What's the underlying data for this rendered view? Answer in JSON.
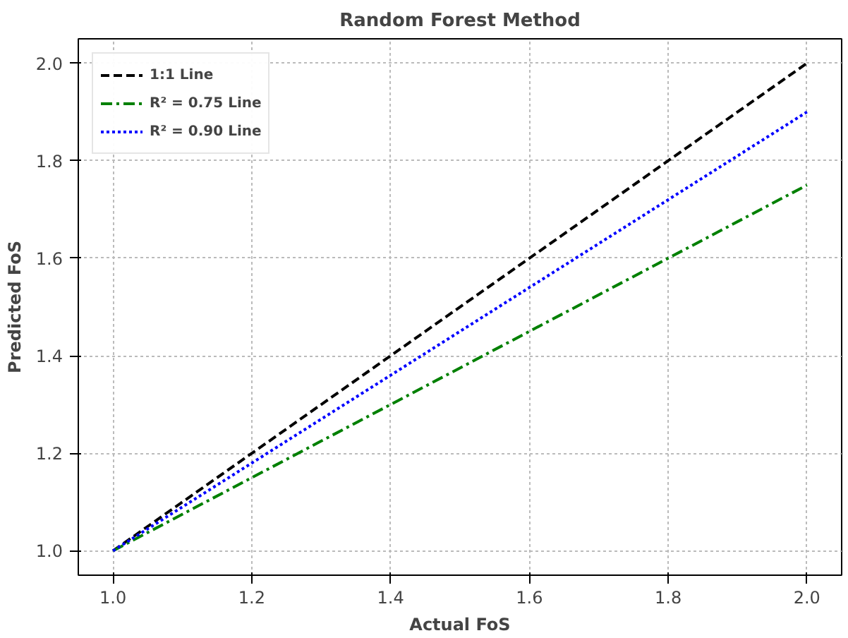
{
  "chart_data": {
    "type": "line",
    "title": "Random Forest Method",
    "xlabel": "Actual FoS",
    "ylabel": "Predicted FoS",
    "x": [
      1.0,
      2.0
    ],
    "series": [
      {
        "name": "1:1 Line",
        "color": "#000000",
        "values": [
          1.0,
          2.0
        ],
        "line_style": "dashed"
      },
      {
        "name": "R² = 0.75 Line",
        "color": "#008000",
        "values": [
          1.0,
          1.75
        ],
        "line_style": "dashdot"
      },
      {
        "name": "R² = 0.90 Line",
        "color": "#0000ff",
        "values": [
          1.0,
          1.9
        ],
        "line_style": "dotted"
      }
    ],
    "xlim": [
      0.95,
      2.05
    ],
    "ylim": [
      0.95,
      2.05
    ],
    "xticks": [
      {
        "value": 1.0,
        "label": "1.0"
      },
      1.2,
      1.4,
      1.6,
      1.8,
      {
        "value": 2.0,
        "label": "2.0"
      }
    ],
    "yticks": [
      {
        "value": 1.0,
        "label": "1.0"
      },
      1.2,
      1.4,
      1.6,
      1.8,
      {
        "value": 2.0,
        "label": "2.0"
      }
    ],
    "grid": true,
    "legend": "top left",
    "marker": "none"
  }
}
